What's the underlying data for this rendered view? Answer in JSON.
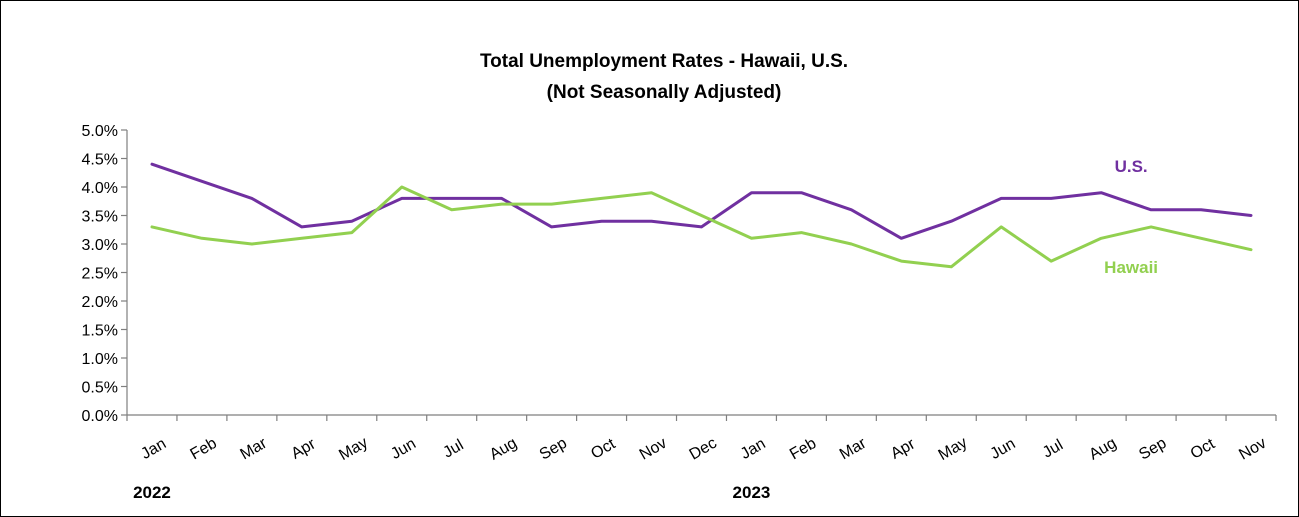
{
  "chart_data": {
    "type": "line",
    "title_lines": [
      "Total Unemployment Rates - Hawaii, U.S.",
      "(Not Seasonally Adjusted)"
    ],
    "categories": [
      "Jan",
      "Feb",
      "Mar",
      "Apr",
      "May",
      "Jun",
      "Jul",
      "Aug",
      "Sep",
      "Oct",
      "Nov",
      "Dec",
      "Jan",
      "Feb",
      "Mar",
      "Apr",
      "May",
      "Jun",
      "Jul",
      "Aug",
      "Sep",
      "Oct",
      "Nov"
    ],
    "year_labels": [
      {
        "text": "2022",
        "category_index": 0
      },
      {
        "text": "2023",
        "category_index": 12
      }
    ],
    "y_ticks": [
      "0.0%",
      "0.5%",
      "1.0%",
      "1.5%",
      "2.0%",
      "2.5%",
      "3.0%",
      "3.5%",
      "4.0%",
      "4.5%",
      "5.0%"
    ],
    "ylim": [
      0,
      5.0
    ],
    "y_unit": "%",
    "grid": false,
    "legend": "inline labels",
    "series": [
      {
        "name": "U.S.",
        "color": "#7030A0",
        "values": [
          4.4,
          4.1,
          3.8,
          3.3,
          3.4,
          3.8,
          3.8,
          3.8,
          3.3,
          3.4,
          3.4,
          3.3,
          3.9,
          3.9,
          3.6,
          3.1,
          3.4,
          3.8,
          3.8,
          3.9,
          3.6,
          3.6,
          3.5
        ]
      },
      {
        "name": "Hawaii",
        "color": "#92D050",
        "values": [
          3.3,
          3.1,
          3.0,
          3.1,
          3.2,
          4.0,
          3.6,
          3.7,
          3.7,
          3.8,
          3.9,
          3.5,
          3.1,
          3.2,
          3.0,
          2.7,
          2.6,
          3.3,
          2.7,
          3.1,
          3.3,
          3.1,
          2.9
        ]
      }
    ]
  }
}
